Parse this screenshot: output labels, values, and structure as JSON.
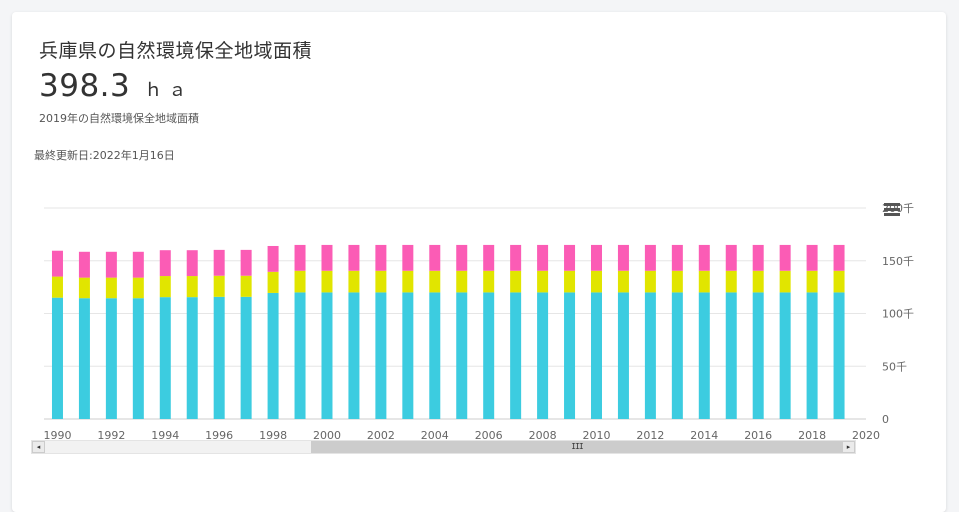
{
  "header": {
    "title": "兵庫県の自然環境保全地域面積",
    "value": "398.3",
    "unit": "ｈａ",
    "subtitle": "2019年の自然環境保全地域面積",
    "last_updated": "最終更新日:2022年1月16日"
  },
  "scrollbar": {
    "left_arrow": "◂",
    "right_arrow": "▸",
    "thumb_grip": "III"
  },
  "colors": {
    "series_blue": "#3ccce0",
    "series_yellow": "#e1e500",
    "series_pink": "#fb5cb5",
    "grid": "#e6e6e6",
    "axis_text": "#666666"
  },
  "chart_data": {
    "type": "bar",
    "stacked": true,
    "x": [
      1990,
      1991,
      1992,
      1993,
      1994,
      1995,
      1996,
      1997,
      1998,
      1999,
      2000,
      2001,
      2002,
      2003,
      2004,
      2005,
      2006,
      2007,
      2008,
      2009,
      2010,
      2011,
      2012,
      2013,
      2014,
      2015,
      2016,
      2017,
      2018,
      2019
    ],
    "x_ticks": [
      "1990",
      "1992",
      "1994",
      "1996",
      "1998",
      "2000",
      "2002",
      "2004",
      "2006",
      "2008",
      "2010",
      "2012",
      "2014",
      "2016",
      "2018",
      "2020"
    ],
    "x_range": [
      1989.5,
      2020
    ],
    "y_ticks": [
      {
        "value": 0,
        "label": "0"
      },
      {
        "value": 50000,
        "label": "50千"
      },
      {
        "value": 100000,
        "label": "100千"
      },
      {
        "value": 150000,
        "label": "150千"
      },
      {
        "value": 200000,
        "label": "200千"
      }
    ],
    "ylim": [
      0,
      200000
    ],
    "grid": true,
    "series": [
      {
        "color": "#3ccce0",
        "values": [
          115000,
          114500,
          114500,
          114500,
          115500,
          115500,
          115800,
          115800,
          119500,
          120000,
          120000,
          120000,
          120000,
          120000,
          120000,
          120000,
          120000,
          120000,
          120000,
          120000,
          120000,
          120000,
          120000,
          120000,
          120000,
          120000,
          120000,
          120000,
          120000,
          120000
        ]
      },
      {
        "color": "#e1e500",
        "values": [
          20000,
          19500,
          19500,
          19500,
          20000,
          20000,
          20000,
          20000,
          20000,
          20500,
          20500,
          20500,
          20500,
          20500,
          20500,
          20500,
          20500,
          20500,
          20500,
          20500,
          20500,
          20500,
          20500,
          20500,
          20500,
          20500,
          20500,
          20500,
          20500,
          20500
        ]
      },
      {
        "color": "#fb5cb5",
        "values": [
          24500,
          24500,
          24500,
          24500,
          24500,
          24500,
          24500,
          24500,
          24500,
          24500,
          24500,
          24500,
          24500,
          24500,
          24500,
          24500,
          24500,
          24500,
          24500,
          24500,
          24500,
          24500,
          24500,
          24500,
          24500,
          24500,
          24500,
          24500,
          24500,
          24500
        ]
      }
    ]
  }
}
